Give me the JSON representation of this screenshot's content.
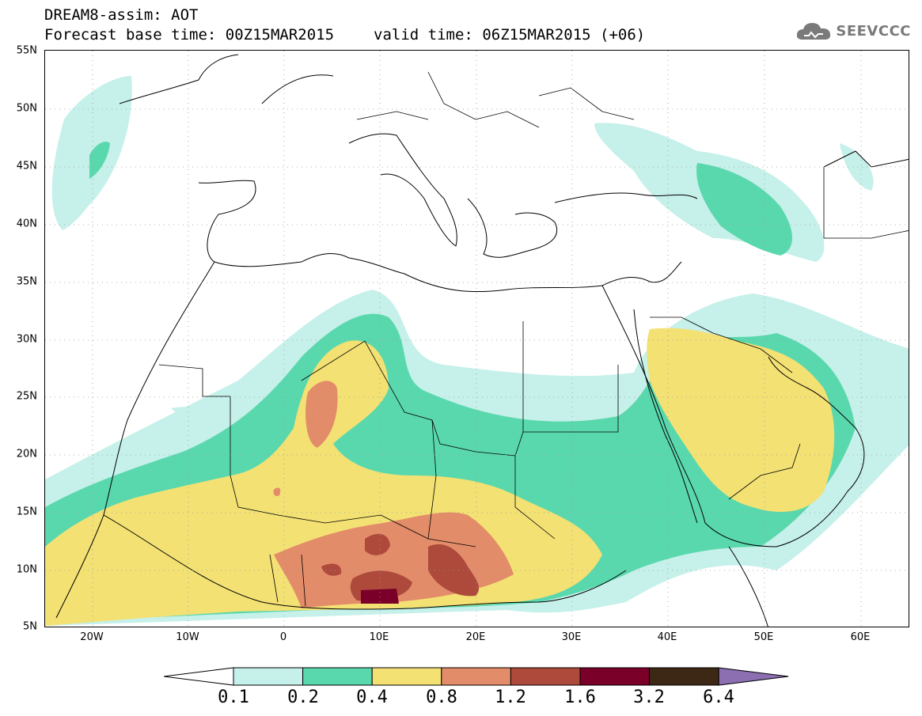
{
  "header": {
    "title_line1": "DREAM8-assim: AOT",
    "forecast_base": "Forecast base time: 00Z15MAR2015",
    "valid_time": "valid time: 06Z15MAR2015 (+06)"
  },
  "logo": {
    "text": "SEEVCCC",
    "icon": "cloud-icon",
    "color": "#7a7a7a"
  },
  "map": {
    "lat_labels": [
      "55N",
      "50N",
      "45N",
      "40N",
      "35N",
      "30N",
      "25N",
      "20N",
      "15N",
      "10N",
      "5N"
    ],
    "lon_labels": [
      "20W",
      "10W",
      "0",
      "10E",
      "20E",
      "30E",
      "40E",
      "50E",
      "60E"
    ]
  },
  "colorbar": {
    "labels": [
      "0.1",
      "0.2",
      "0.4",
      "0.8",
      "1.2",
      "1.6",
      "3.2",
      "6.4"
    ],
    "colors": [
      "#ffffff",
      "#c6f0ea",
      "#5ad8ad",
      "#f3e174",
      "#e38c69",
      "#ad4a3c",
      "#7a0029",
      "#3d2816",
      "#8c6fb0"
    ]
  },
  "colors": {
    "level_01": "#c6f0ea",
    "level_02": "#5ad8ad",
    "level_04": "#f3e174",
    "level_08": "#e38c69",
    "level_12": "#ad4a3c",
    "level_16": "#7a0029",
    "border": "#000000"
  }
}
